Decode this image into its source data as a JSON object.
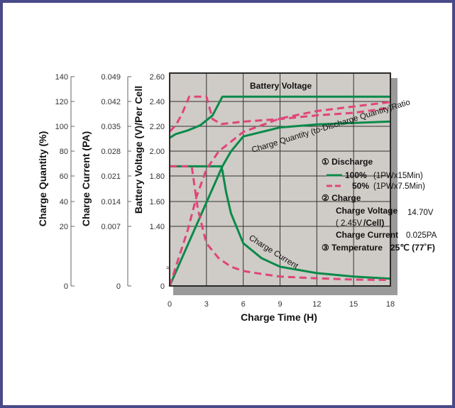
{
  "chart_data": {
    "type": "line",
    "title": "",
    "xlabel": "Charge Time (H)",
    "ylabel_quantity": "Charge Quantity (%)",
    "ylabel_current": "Charge Current (PA)",
    "ylabel_voltage": "Battery Voltage (V)/Per Cell",
    "x_ticks": [
      0,
      3,
      6,
      9,
      12,
      15,
      18
    ],
    "xlim": [
      0,
      18
    ],
    "y_quantity_ticks": [
      "140",
      "120",
      "100",
      "80",
      "60",
      "40",
      "20",
      "0"
    ],
    "y_current_ticks": [
      "0.049",
      "0.042",
      "0.035",
      "0.028",
      "0.021",
      "0.014",
      "0.007",
      "0"
    ],
    "y_voltage_ticks": [
      "2.60",
      "2.40",
      "2.20",
      "2.00",
      "1.80",
      "1.60",
      "1.40",
      "0"
    ],
    "grid": true,
    "curve_labels": {
      "voltage": "Battery Voltage",
      "quantity": "Charge Quantity (to-Discharge Quantity)Ratio",
      "current": "Charge Current"
    },
    "legend": {
      "discharge_title": "① Discharge",
      "line_100_label": "100%",
      "line_100_detail": "(1PWx15Min)",
      "line_50_label": "50%",
      "line_50_detail": "(1PWx7.5Min)",
      "charge_title": "② Charge",
      "charge_voltage_label": "Charge Voltage",
      "charge_voltage_value": "14.70V",
      "cell_voltage_value": "( 2.45V",
      "cell_voltage_unit": "/Cell)",
      "charge_current_label": "Charge Current",
      "charge_current_value": "0.025PA",
      "temperature_label": "③ Temperature",
      "temperature_value": "25℃ (77˚F)"
    },
    "series": [
      {
        "name": "100%",
        "color": "#0a8a4a",
        "voltage": {
          "x": [
            0,
            0.5,
            1.5,
            2.5,
            3.5,
            4.3,
            6,
            9,
            12,
            15,
            18
          ],
          "y": [
            2.11,
            2.14,
            2.17,
            2.21,
            2.29,
            2.44,
            2.44,
            2.44,
            2.44,
            2.44,
            2.44
          ]
        },
        "current": {
          "x": [
            0,
            4.2,
            4.3,
            4.6,
            5,
            6,
            7.5,
            9,
            12,
            15,
            18
          ],
          "y": [
            0.028,
            0.028,
            0.027,
            0.022,
            0.017,
            0.01,
            0.0065,
            0.0045,
            0.003,
            0.0022,
            0.0017
          ]
        },
        "quantity": {
          "x": [
            0,
            4.3,
            5,
            6,
            9,
            12,
            15,
            18
          ],
          "y": [
            0,
            80,
            90,
            100,
            106,
            108,
            109,
            110
          ]
        }
      },
      {
        "name": "50%",
        "color": "#e0457a",
        "voltage": {
          "x": [
            0,
            0.5,
            1.0,
            1.6,
            2,
            3,
            3.5,
            4.2,
            6,
            9,
            12,
            15,
            18
          ],
          "y": [
            2.16,
            2.21,
            2.3,
            2.44,
            2.44,
            2.44,
            2.26,
            2.22,
            2.24,
            2.26,
            2.29,
            2.31,
            2.35
          ]
        },
        "current": {
          "x": [
            0,
            1.8,
            2.3,
            3,
            4,
            5,
            6,
            7.5,
            9,
            12,
            15,
            18
          ],
          "y": [
            0.028,
            0.028,
            0.018,
            0.01,
            0.0065,
            0.0045,
            0.0035,
            0.0028,
            0.0022,
            0.0018,
            0.0015,
            0.0014
          ]
        },
        "quantity": {
          "x": [
            0,
            1.5,
            2.2,
            3,
            4,
            6,
            9,
            12,
            15,
            18
          ],
          "y": [
            0,
            38,
            60,
            78,
            90,
            103,
            112,
            117,
            120,
            123
          ]
        }
      }
    ]
  }
}
